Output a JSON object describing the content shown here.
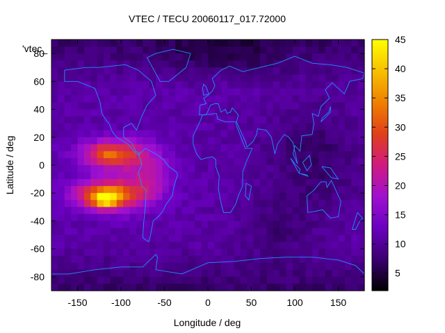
{
  "chart_data": {
    "type": "heatmap",
    "title": "VTEC / TECU 20060117_017.72000",
    "xlabel": "Longitude / deg",
    "ylabel": "Latitude / deg",
    "xlim": [
      -180,
      180
    ],
    "ylim": [
      -90,
      90
    ],
    "x_ticks": [
      -150,
      -100,
      -50,
      0,
      50,
      100,
      150
    ],
    "y_ticks": [
      -80,
      -60,
      -40,
      -20,
      0,
      20,
      40,
      60,
      80
    ],
    "legend_label": "'vtec_",
    "legend_placement": "top-left",
    "colorbar": {
      "min": 2,
      "max": 45,
      "ticks": [
        5,
        10,
        15,
        20,
        25,
        30,
        35,
        40,
        45
      ],
      "colors": [
        "#000000",
        "#3a0070",
        "#6a00c0",
        "#a010d0",
        "#d01a80",
        "#e0401a",
        "#f08000",
        "#f8c000",
        "#ffff00"
      ]
    },
    "coastline_color": "#1e90ff",
    "grid": false,
    "field_extrema": [
      {
        "lon": -115,
        "lat": -25,
        "value": 45
      },
      {
        "lon": -105,
        "lat": 10,
        "value": 28
      },
      {
        "lon": 130,
        "lat": -15,
        "value": 4
      },
      {
        "lon": 120,
        "lat": 20,
        "value": 3
      }
    ]
  }
}
